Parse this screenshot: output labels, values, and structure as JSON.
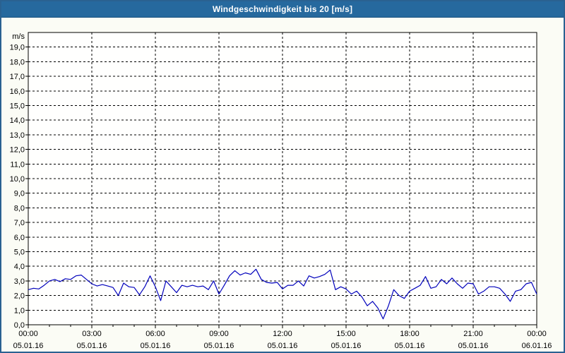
{
  "title": "Windgeschwindigkeit bis 20 [m/s]",
  "colors": {
    "window_border": "#2a6191",
    "titlebar_bg": "#26699e",
    "titlebar_edge": "#17507e",
    "titlebar_text": "#ffffff",
    "page_bg": "#fbfcf5",
    "plot_bg": "#fffffe",
    "grid": "#000000",
    "axis": "#000000",
    "line": "#0000bb"
  },
  "chart_data": {
    "type": "line",
    "title": "Windgeschwindigkeit bis 20 [m/s]",
    "y_unit": "m/s",
    "ylim": [
      0,
      20
    ],
    "y_label_step": 1,
    "y_label_format": "decimal-comma",
    "grid": "dashed",
    "legend": "none",
    "x_hours": 24,
    "x_minor_step_hours": 1,
    "x_major_step_hours": 3,
    "sample_interval_min": 15,
    "x_major_ticks": [
      {
        "time": "00:00",
        "date": "05.01.16"
      },
      {
        "time": "03:00",
        "date": "05.01.16"
      },
      {
        "time": "06:00",
        "date": "05.01.16"
      },
      {
        "time": "09:00",
        "date": "05.01.16"
      },
      {
        "time": "12:00",
        "date": "05.01.16"
      },
      {
        "time": "15:00",
        "date": "05.01.16"
      },
      {
        "time": "18:00",
        "date": "05.01.16"
      },
      {
        "time": "21:00",
        "date": "05.01.16"
      },
      {
        "time": "00:00",
        "date": "06.01.16"
      }
    ],
    "series": [
      {
        "name": "Windgeschwindigkeit",
        "values": [
          2.4,
          2.5,
          2.45,
          2.7,
          3.0,
          3.1,
          2.95,
          3.15,
          3.1,
          3.35,
          3.4,
          3.1,
          2.8,
          2.65,
          2.75,
          2.65,
          2.55,
          2.0,
          2.85,
          2.6,
          2.55,
          2.05,
          2.6,
          3.35,
          2.6,
          1.65,
          3.0,
          2.6,
          2.2,
          2.7,
          2.6,
          2.7,
          2.6,
          2.65,
          2.4,
          3.0,
          2.1,
          2.7,
          3.35,
          3.7,
          3.4,
          3.55,
          3.45,
          3.8,
          3.1,
          2.9,
          2.85,
          2.9,
          2.45,
          2.7,
          2.7,
          3.0,
          2.65,
          3.35,
          3.2,
          3.3,
          3.45,
          3.75,
          2.4,
          2.6,
          2.45,
          2.1,
          2.3,
          1.9,
          1.3,
          1.6,
          1.15,
          0.4,
          1.3,
          2.4,
          2.0,
          1.8,
          2.3,
          2.5,
          2.7,
          3.3,
          2.5,
          2.6,
          3.1,
          2.8,
          3.2,
          2.8,
          2.5,
          2.85,
          2.8,
          2.1,
          2.3,
          2.6,
          2.6,
          2.5,
          2.1,
          1.6,
          2.3,
          2.4,
          2.8,
          2.9,
          2.1
        ]
      }
    ]
  }
}
